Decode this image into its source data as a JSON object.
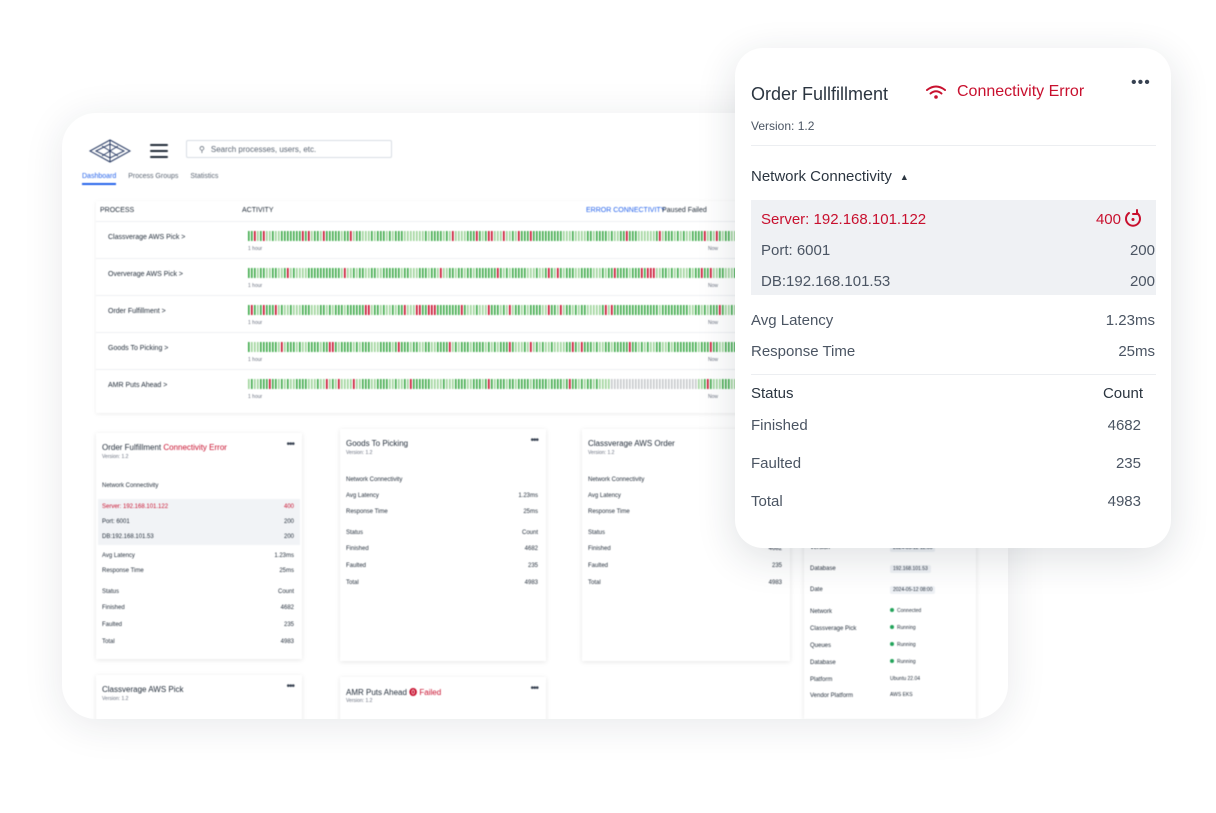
{
  "dashboard": {
    "search": {
      "text": "Search processes, users, etc."
    },
    "tabs": [
      "Dashboard",
      "Process Groups",
      "Statistics"
    ],
    "table": {
      "headers": [
        "PROCESS",
        "ACTIVITY",
        "ERROR CONNECTIVITY",
        "Paused",
        "Failed"
      ],
      "rows": [
        {
          "name": "Classverage AWS Pick >",
          "left": "1 hour",
          "right": "Now"
        },
        {
          "name": "Oververage AWS Pick >",
          "left": "1 hour",
          "right": "Now"
        },
        {
          "name": "Order Fulfillment >",
          "left": "1 hour",
          "right": "Now"
        },
        {
          "name": "Goods To Picking >",
          "left": "1 hour",
          "right": "Now"
        },
        {
          "name": "AMR Puts Ahead >",
          "left": "1 hour",
          "right": "Now"
        }
      ]
    },
    "card1": {
      "title": "Order Fulfillment",
      "error": "Connectivity Error",
      "version": "Version: 1.2",
      "section": "Network Connectivity",
      "server": "Server: 192.168.101.122",
      "server_val": "400",
      "port": "Port: 6001",
      "port_val": "200",
      "db": "DB:192.168.101.53",
      "db_val": "200",
      "lat": "Avg Latency",
      "lat_val": "1.23ms",
      "resp": "Response Time",
      "resp_val": "25ms",
      "status": "Status",
      "count": "Count",
      "fin": "Finished",
      "fin_val": "4682",
      "fault": "Faulted",
      "fault_val": "235",
      "tot": "Total",
      "tot_val": "4983"
    },
    "card2": {
      "title": "Goods To Picking",
      "version": "Version: 1.2",
      "section": "Network Connectivity",
      "lat": "Avg Latency",
      "lat_val": "1.23ms",
      "resp": "Response Time",
      "resp_val": "25ms",
      "status": "Status",
      "count": "Count",
      "fin": "Finished",
      "fin_val": "4682",
      "fault": "Faulted",
      "fault_val": "235",
      "tot": "Total",
      "tot_val": "4983"
    },
    "card3": {
      "title": "Classverage AWS Order",
      "version": "Version: 1.2",
      "section": "Network Connectivity",
      "lat": "Avg Latency",
      "resp": "Response Time",
      "status": "Status",
      "fin": "Finished",
      "fin_val": "4682",
      "fault": "Faulted",
      "fault_val": "235",
      "tot": "Total",
      "tot_val": "4983"
    },
    "card4": {
      "rows": [
        {
          "k": "Version",
          "v": "2024-05-12 12:00"
        },
        {
          "k": "Database",
          "v": "192.168.101.53"
        },
        {
          "k": "Date",
          "v": "2024-05-12 08:00"
        }
      ],
      "status": [
        {
          "k": "Network",
          "v": "Connected"
        },
        {
          "k": "Classverage Pick",
          "v": "Running"
        },
        {
          "k": "Queues",
          "v": "Running"
        },
        {
          "k": "Database",
          "v": "Running"
        },
        {
          "k": "Platform",
          "v": "Ubuntu 22.04"
        },
        {
          "k": "Vendor Platform",
          "v": "AWS EKS"
        }
      ]
    },
    "card5": {
      "title": "Classverage AWS Pick",
      "version": "Version: 1.2"
    },
    "card6": {
      "title": "AMR Puts Ahead",
      "error": "Failed",
      "version": "Version: 1.2"
    }
  },
  "popup": {
    "title": "Order Fullfillment",
    "error_label": "Connectivity Error",
    "more": "•••",
    "version": "Version: 1.2",
    "section": "Network Connectivity",
    "server": {
      "label": "Server: 192.168.101.122",
      "value": "400"
    },
    "port": {
      "label": "Port: 6001",
      "value": "200"
    },
    "db": {
      "label": "DB:192.168.101.53",
      "value": "200"
    },
    "latency": {
      "label": "Avg Latency",
      "value": "1.23ms"
    },
    "response": {
      "label": "Response Time",
      "value": "25ms"
    },
    "status_header": {
      "label": "Status",
      "value": "Count"
    },
    "finished": {
      "label": "Finished",
      "value": "4682"
    },
    "faulted": {
      "label": "Faulted",
      "value": "235"
    },
    "total": {
      "label": "Total",
      "value": "4983"
    }
  },
  "colors": {
    "error": "#c8102e",
    "ok_bar": "#3faa4a",
    "light_bar": "#9ed49b",
    "err_bar": "#c8102e",
    "grey_bar": "#c7c9cc"
  }
}
